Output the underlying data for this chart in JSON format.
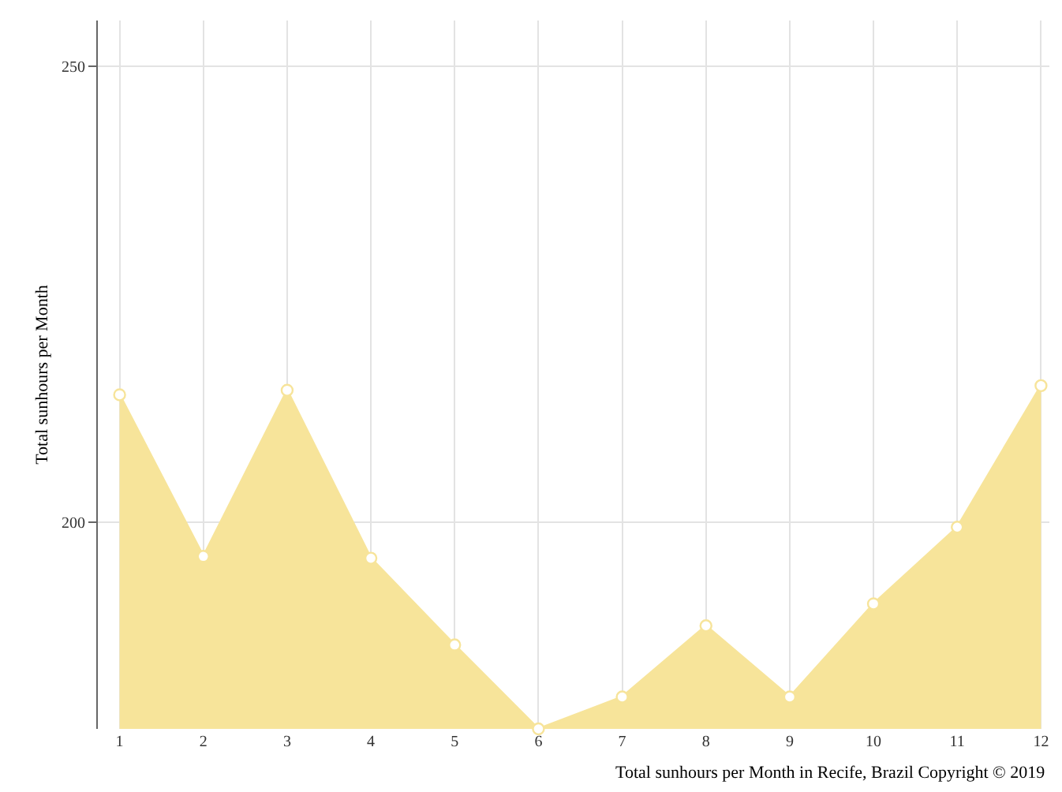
{
  "chart_data": {
    "type": "area",
    "ylabel": "Total sunhours per Month",
    "x": [
      1,
      2,
      3,
      4,
      5,
      6,
      7,
      8,
      9,
      10,
      11,
      12
    ],
    "series": [
      {
        "color": "#f7e49a",
        "values": [
          214.0,
          196.3,
          214.5,
          196.1,
          186.6,
          177.4,
          180.9,
          188.7,
          180.9,
          191.1,
          199.5,
          215.0
        ]
      }
    ],
    "xlim": [
      0.74,
      12.1
    ],
    "xticks": [
      1,
      2,
      3,
      4,
      5,
      6,
      7,
      8,
      9,
      10,
      11,
      12
    ],
    "ylim": [
      177.4,
      255
    ],
    "yticks": [
      200,
      250
    ],
    "grid": true,
    "marker": "circle",
    "annotations": [
      "Total sunhours per Month in Recife, Brazil Copyright © 2019"
    ]
  }
}
